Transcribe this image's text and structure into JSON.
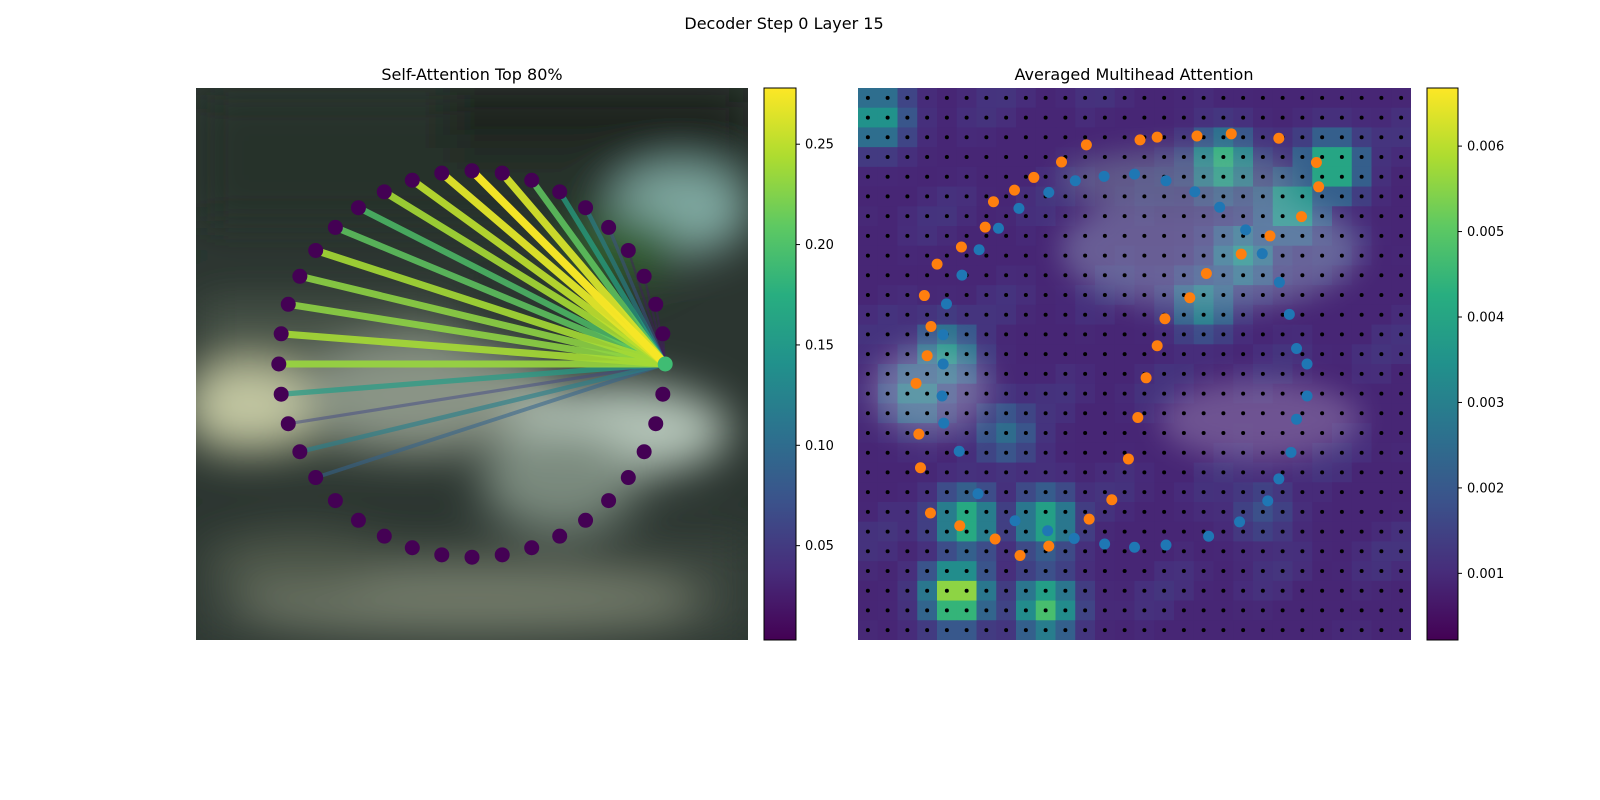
{
  "figure": {
    "suptitle": "Decoder Step 0 Layer 15"
  },
  "chart_data": [
    {
      "type": "scatter",
      "title": "Self-Attention Top 80%",
      "xlabel": "",
      "ylabel": "",
      "background": "blurred street-scene image (dark green/grey)",
      "ring": {
        "num_points": 40,
        "center": [
          0.5,
          0.5
        ],
        "radius": 0.35,
        "query_index": 0,
        "node_color": "#440154",
        "query_color": "#3fbc73"
      },
      "edges": [
        {
          "target": 1,
          "weight": 0.02
        },
        {
          "target": 2,
          "weight": 0.02
        },
        {
          "target": 3,
          "weight": 0.02
        },
        {
          "target": 4,
          "weight": 0.02
        },
        {
          "target": 5,
          "weight": 0.07
        },
        {
          "target": 6,
          "weight": 0.12
        },
        {
          "target": 7,
          "weight": 0.16
        },
        {
          "target": 8,
          "weight": 0.21
        },
        {
          "target": 9,
          "weight": 0.26
        },
        {
          "target": 10,
          "weight": 0.275
        },
        {
          "target": 11,
          "weight": 0.265
        },
        {
          "target": 12,
          "weight": 0.25
        },
        {
          "target": 13,
          "weight": 0.24
        },
        {
          "target": 14,
          "weight": 0.2
        },
        {
          "target": 15,
          "weight": 0.21
        },
        {
          "target": 16,
          "weight": 0.24
        },
        {
          "target": 17,
          "weight": 0.23
        },
        {
          "target": 18,
          "weight": 0.23
        },
        {
          "target": 19,
          "weight": 0.24
        },
        {
          "target": 20,
          "weight": 0.235
        },
        {
          "target": 21,
          "weight": 0.155
        },
        {
          "target": 22,
          "weight": 0.06
        },
        {
          "target": 23,
          "weight": 0.12
        },
        {
          "target": 24,
          "weight": 0.09
        }
      ],
      "colorbar": {
        "min": 0.003,
        "max": 0.278,
        "ticks": [
          0.05,
          0.1,
          0.15,
          0.2,
          0.25
        ],
        "tick_labels": [
          "0.05",
          "0.10",
          "0.15",
          "0.20",
          "0.25"
        ],
        "colormap": "viridis"
      }
    },
    {
      "type": "heatmap",
      "title": "Averaged Multihead Attention",
      "xlabel": "",
      "ylabel": "",
      "grid": {
        "rows": 28,
        "cols": 28,
        "dot_color": "#000000"
      },
      "hotspots": [
        {
          "row": 1,
          "col": 0.5,
          "value": 0.0038
        },
        {
          "row": 3.3,
          "col": 18,
          "value": 0.0045
        },
        {
          "row": 3.5,
          "col": 23.5,
          "value": 0.0048
        },
        {
          "row": 5.5,
          "col": 21.5,
          "value": 0.0042
        },
        {
          "row": 8,
          "col": 19,
          "value": 0.0035
        },
        {
          "row": 10.5,
          "col": 17,
          "value": 0.0032
        },
        {
          "row": 13,
          "col": 4,
          "value": 0.0036
        },
        {
          "row": 15,
          "col": 2.5,
          "value": 0.0032
        },
        {
          "row": 17,
          "col": 7,
          "value": 0.0025
        },
        {
          "row": 21.5,
          "col": 5,
          "value": 0.0045
        },
        {
          "row": 21.5,
          "col": 9,
          "value": 0.0042
        },
        {
          "row": 25.2,
          "col": 4.5,
          "value": 0.0062
        },
        {
          "row": 25.8,
          "col": 9,
          "value": 0.0048
        },
        {
          "row": 21,
          "col": 20,
          "value": 0.0018
        }
      ],
      "base_value": 0.0009,
      "series": [
        {
          "color": "#1f77b4",
          "points": [
            [
              0.5,
              0.156
            ],
            [
              0.557,
              0.168
            ],
            [
              0.609,
              0.188
            ],
            [
              0.654,
              0.216
            ],
            [
              0.701,
              0.257
            ],
            [
              0.731,
              0.3
            ],
            [
              0.762,
              0.352
            ],
            [
              0.78,
              0.41
            ],
            [
              0.793,
              0.472
            ],
            [
              0.812,
              0.5
            ],
            [
              0.812,
              0.558
            ],
            [
              0.793,
              0.6
            ],
            [
              0.783,
              0.66
            ],
            [
              0.761,
              0.708
            ],
            [
              0.741,
              0.748
            ],
            [
              0.69,
              0.786
            ],
            [
              0.634,
              0.812
            ],
            [
              0.557,
              0.828
            ],
            [
              0.5,
              0.832
            ],
            [
              0.446,
              0.826
            ],
            [
              0.391,
              0.816
            ],
            [
              0.343,
              0.802
            ],
            [
              0.284,
              0.784
            ],
            [
              0.217,
              0.735
            ],
            [
              0.183,
              0.658
            ],
            [
              0.155,
              0.607
            ],
            [
              0.152,
              0.558
            ],
            [
              0.154,
              0.5
            ],
            [
              0.154,
              0.447
            ],
            [
              0.16,
              0.391
            ],
            [
              0.188,
              0.339
            ],
            [
              0.219,
              0.293
            ],
            [
              0.254,
              0.254
            ],
            [
              0.291,
              0.218
            ],
            [
              0.345,
              0.189
            ],
            [
              0.393,
              0.168
            ],
            [
              0.445,
              0.16
            ]
          ]
        },
        {
          "color": "#ff7f0e",
          "points": [
            [
              0.51,
              0.094
            ],
            [
              0.541,
              0.089
            ],
            [
              0.613,
              0.087
            ],
            [
              0.675,
              0.083
            ],
            [
              0.761,
              0.091
            ],
            [
              0.829,
              0.135
            ],
            [
              0.833,
              0.179
            ],
            [
              0.802,
              0.233
            ],
            [
              0.745,
              0.268
            ],
            [
              0.693,
              0.301
            ],
            [
              0.63,
              0.336
            ],
            [
              0.6,
              0.38
            ],
            [
              0.555,
              0.418
            ],
            [
              0.541,
              0.467
            ],
            [
              0.521,
              0.525
            ],
            [
              0.506,
              0.597
            ],
            [
              0.489,
              0.672
            ],
            [
              0.459,
              0.746
            ],
            [
              0.418,
              0.781
            ],
            [
              0.345,
              0.83
            ],
            [
              0.293,
              0.847
            ],
            [
              0.248,
              0.817
            ],
            [
              0.184,
              0.793
            ],
            [
              0.131,
              0.77
            ],
            [
              0.113,
              0.688
            ],
            [
              0.11,
              0.627
            ],
            [
              0.105,
              0.535
            ],
            [
              0.125,
              0.485
            ],
            [
              0.132,
              0.432
            ],
            [
              0.12,
              0.376
            ],
            [
              0.143,
              0.319
            ],
            [
              0.187,
              0.288
            ],
            [
              0.23,
              0.252
            ],
            [
              0.245,
              0.206
            ],
            [
              0.283,
              0.185
            ],
            [
              0.318,
              0.162
            ],
            [
              0.368,
              0.134
            ],
            [
              0.413,
              0.103
            ]
          ]
        }
      ],
      "colorbar": {
        "min": 0.00022,
        "max": 0.00668,
        "ticks": [
          0.001,
          0.002,
          0.003,
          0.004,
          0.005,
          0.006
        ],
        "tick_labels": [
          "0.001",
          "0.002",
          "0.003",
          "0.004",
          "0.005",
          "0.006"
        ],
        "colormap": "viridis"
      }
    }
  ]
}
